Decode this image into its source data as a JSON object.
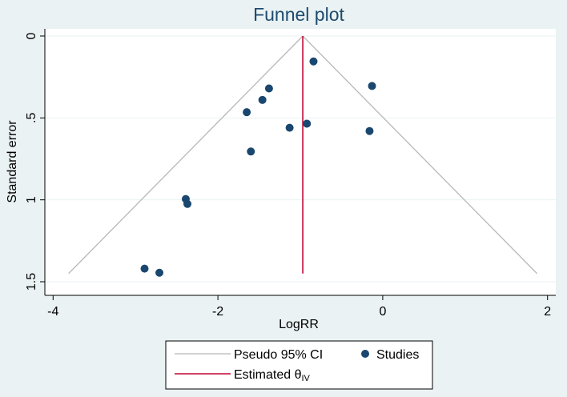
{
  "chart_data": {
    "type": "scatter",
    "title": "Funnel plot",
    "xlabel": "LogRR",
    "ylabel": "Standard error",
    "xlim": [
      -4.1,
      2.1
    ],
    "ylim": [
      0,
      1.5
    ],
    "y_inverted": true,
    "x_ticks": [
      -4,
      -2,
      0,
      2
    ],
    "y_ticks": [
      0,
      0.5,
      1,
      1.5
    ],
    "x_tick_labels": [
      "-4",
      "-2",
      "0",
      "2"
    ],
    "y_tick_labels": [
      "0",
      ".5",
      "1",
      "1.5"
    ],
    "grid": "horizontal",
    "estimated_theta": -0.97,
    "max_se": 1.45,
    "ci_multiplier": 1.96,
    "series": [
      {
        "name": "Studies",
        "kind": "scatter",
        "color": "#1a476f",
        "points": [
          {
            "x": -0.84,
            "y": 0.155
          },
          {
            "x": -0.13,
            "y": 0.305
          },
          {
            "x": -1.38,
            "y": 0.32
          },
          {
            "x": -1.46,
            "y": 0.39
          },
          {
            "x": -1.65,
            "y": 0.465
          },
          {
            "x": -0.92,
            "y": 0.535
          },
          {
            "x": -1.13,
            "y": 0.56
          },
          {
            "x": -0.16,
            "y": 0.58
          },
          {
            "x": -1.6,
            "y": 0.705
          },
          {
            "x": -2.39,
            "y": 0.995
          },
          {
            "x": -2.37,
            "y": 1.025
          },
          {
            "x": -2.89,
            "y": 1.42
          },
          {
            "x": -2.71,
            "y": 1.445
          }
        ]
      }
    ],
    "lines": [
      {
        "name": "Pseudo 95% CI",
        "color": "#b8b8b8"
      },
      {
        "name": "Estimated θIV",
        "color": "#c10534"
      }
    ],
    "legend": {
      "placement": "bottom",
      "items": [
        {
          "label": "Pseudo 95% CI",
          "symbol": "line",
          "color": "#b8b8b8"
        },
        {
          "label": "Studies",
          "symbol": "dot",
          "color": "#1a476f"
        },
        {
          "label": "Estimated θ",
          "subscript": "IV",
          "symbol": "line",
          "color": "#c10534"
        }
      ]
    },
    "colors": {
      "background": "#eaf2f3",
      "plot_background": "#ffffff",
      "gridline": "#eaf2f3",
      "title": "#1e4b6e"
    }
  }
}
